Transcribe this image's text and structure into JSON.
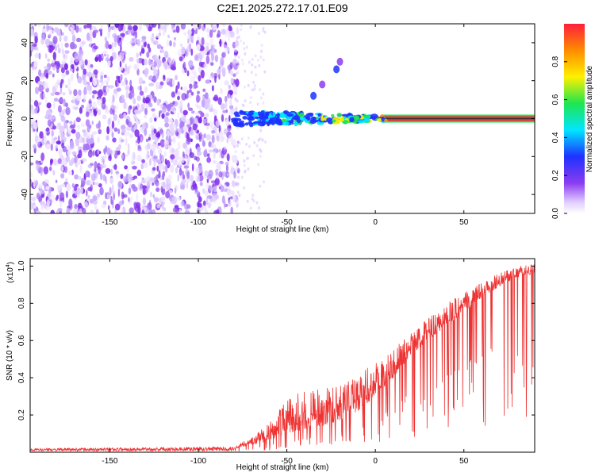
{
  "title": "C2E1.2025.272.17.01.E09",
  "chart_data": [
    {
      "type": "heatmap",
      "title": "C2E1.2025.272.17.01.E09",
      "xlabel": "Height of straight line (km)",
      "ylabel": "Frequency (Hz)",
      "xlim": [
        -195,
        90
      ],
      "ylim": [
        -50,
        50
      ],
      "xticks": [
        -150,
        -100,
        -50,
        0,
        50
      ],
      "yticks": [
        -40,
        -20,
        0,
        20,
        40
      ],
      "colorbar": {
        "label": "Normalized spectral amplitude",
        "range": [
          0,
          1
        ],
        "ticks": [
          0.0,
          0.2,
          0.4,
          0.6,
          0.8
        ],
        "colors": [
          "#ffffff",
          "#e0ccff",
          "#8c3cf0",
          "#1e32ff",
          "#00e6ff",
          "#1ee650",
          "#fff000",
          "#ff8c00",
          "#ff1e3c"
        ]
      },
      "features": {
        "noise_region_x": [
          -195,
          -80
        ],
        "carrier_start_x": -80,
        "carrier_frequency": 0,
        "carrier_strong_from_x": 5,
        "drift_branch": [
          [
            -35,
            12
          ],
          [
            -30,
            18
          ],
          [
            -22,
            26
          ],
          [
            -20,
            30
          ]
        ]
      }
    },
    {
      "type": "line",
      "xlabel": "Height of straight line (km)",
      "ylabel": "SNR (10 * v/v)",
      "scale_label": "(x10",
      "scale_exponent": "4",
      "scale_suffix": ")",
      "xlim": [
        -195,
        90
      ],
      "ylim": [
        0,
        1.04
      ],
      "xticks": [
        -150,
        -100,
        -50,
        0,
        50
      ],
      "yticks": [
        0.2,
        0.4,
        0.6,
        0.8,
        1.0
      ],
      "series": [
        {
          "name": "SNR",
          "color": "#ee3333",
          "envelope_x": [
            -195,
            -80,
            -70,
            -60,
            -50,
            -40,
            -30,
            -20,
            -10,
            0,
            10,
            20,
            30,
            40,
            50,
            60,
            70,
            80,
            90
          ],
          "envelope_max": [
            0.02,
            0.03,
            0.08,
            0.16,
            0.3,
            0.33,
            0.34,
            0.37,
            0.42,
            0.48,
            0.55,
            0.65,
            0.72,
            0.8,
            0.86,
            0.92,
            0.96,
            1.0,
            1.01
          ],
          "envelope_typ": [
            0.015,
            0.02,
            0.04,
            0.06,
            0.1,
            0.12,
            0.14,
            0.17,
            0.22,
            0.3,
            0.4,
            0.52,
            0.6,
            0.68,
            0.75,
            0.83,
            0.89,
            0.94,
            0.96
          ]
        }
      ]
    }
  ]
}
